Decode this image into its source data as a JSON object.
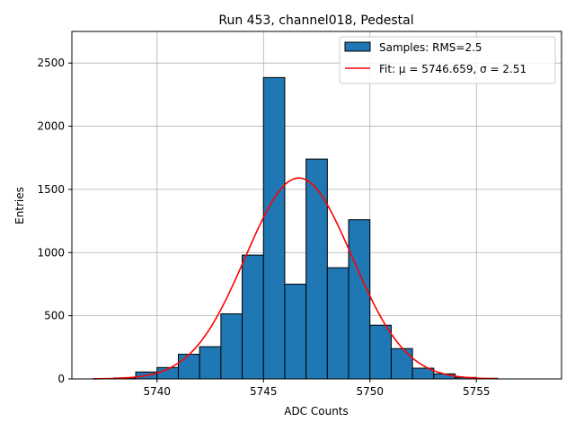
{
  "chart_data": {
    "type": "bar",
    "title": "Run 453, channel018, Pedestal",
    "xlabel": "ADC Counts",
    "ylabel": "Entries",
    "xlim": [
      5736.0,
      5759.0
    ],
    "ylim": [
      0,
      2750
    ],
    "xticks": [
      5740,
      5745,
      5750,
      5755
    ],
    "yticks": [
      0,
      500,
      1000,
      1500,
      2000,
      2500
    ],
    "grid": true,
    "legend_position": "top-right",
    "colors": {
      "bars": "#1f77b4",
      "bar_edge": "#000000",
      "fit": "#ff0000",
      "grid": "#b0b0b0"
    },
    "series": [
      {
        "name": "Samples: RMS=2.5",
        "kind": "histogram",
        "bin_edges": [
          5737,
          5738,
          5739,
          5740,
          5741,
          5742,
          5743,
          5744,
          5745,
          5746,
          5747,
          5748,
          5749,
          5750,
          5751,
          5752,
          5753,
          5754,
          5755,
          5756
        ],
        "values": [
          2,
          8,
          55,
          90,
          195,
          255,
          515,
          980,
          2385,
          750,
          1740,
          880,
          1260,
          425,
          240,
          85,
          40,
          12,
          5
        ]
      },
      {
        "name": "Fit: μ = 5746.659, σ = 2.51",
        "kind": "gaussian",
        "mu": 5746.659,
        "sigma": 2.51,
        "amplitude": 1590,
        "x_range": [
          5737.0,
          5756.0
        ]
      }
    ]
  }
}
